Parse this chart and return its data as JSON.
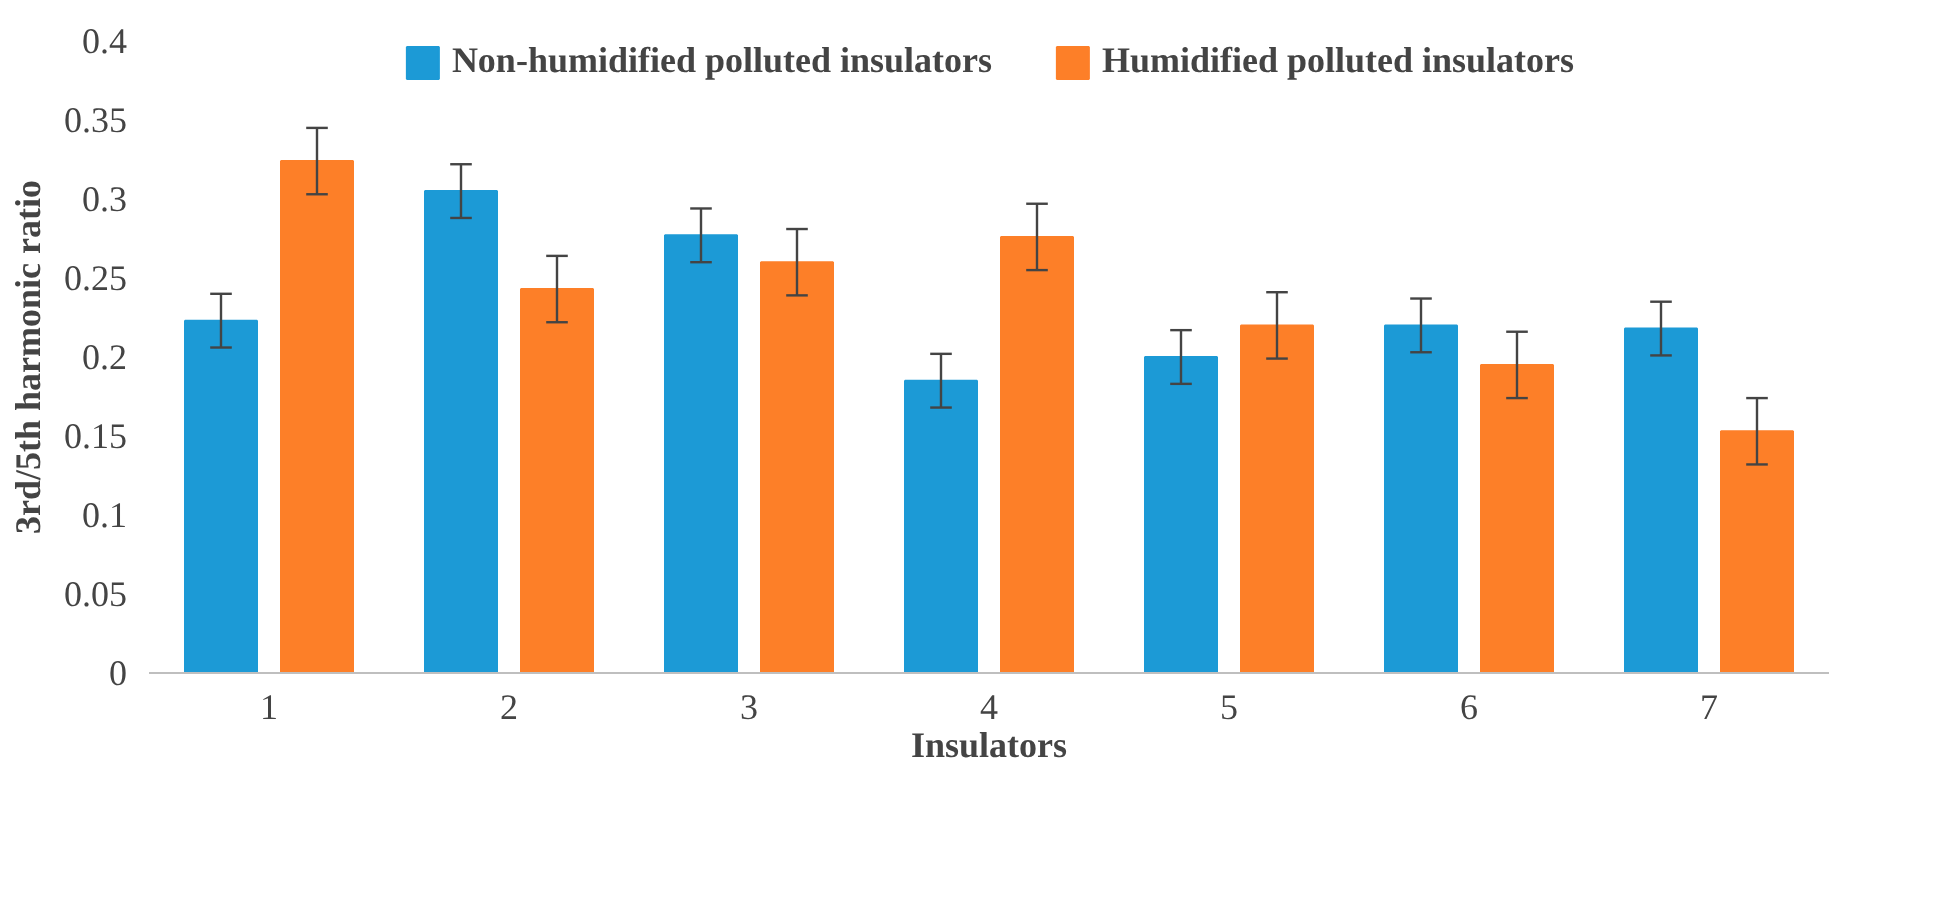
{
  "chart_data": {
    "type": "bar",
    "xlabel": "Insulators",
    "ylabel": "3rd/5th harmonic ratio",
    "categories": [
      "1",
      "2",
      "3",
      "4",
      "5",
      "6",
      "7"
    ],
    "series": [
      {
        "name": "Non-humidified polluted insulators",
        "color": "#1c9ad6",
        "values": [
          0.223,
          0.305,
          0.277,
          0.185,
          0.2,
          0.22,
          0.218
        ],
        "errors": [
          0.017,
          0.017,
          0.017,
          0.017,
          0.017,
          0.017,
          0.017
        ]
      },
      {
        "name": "Humidified polluted insulators",
        "color": "#fd7f28",
        "values": [
          0.324,
          0.243,
          0.26,
          0.276,
          0.22,
          0.195,
          0.153
        ],
        "errors": [
          0.021,
          0.021,
          0.021,
          0.021,
          0.021,
          0.021,
          0.021
        ]
      }
    ],
    "ylim": [
      0,
      0.4
    ],
    "yticks": [
      0,
      0.05,
      0.1,
      0.15,
      0.2,
      0.25,
      0.3,
      0.35,
      0.4
    ],
    "legend": "top"
  }
}
